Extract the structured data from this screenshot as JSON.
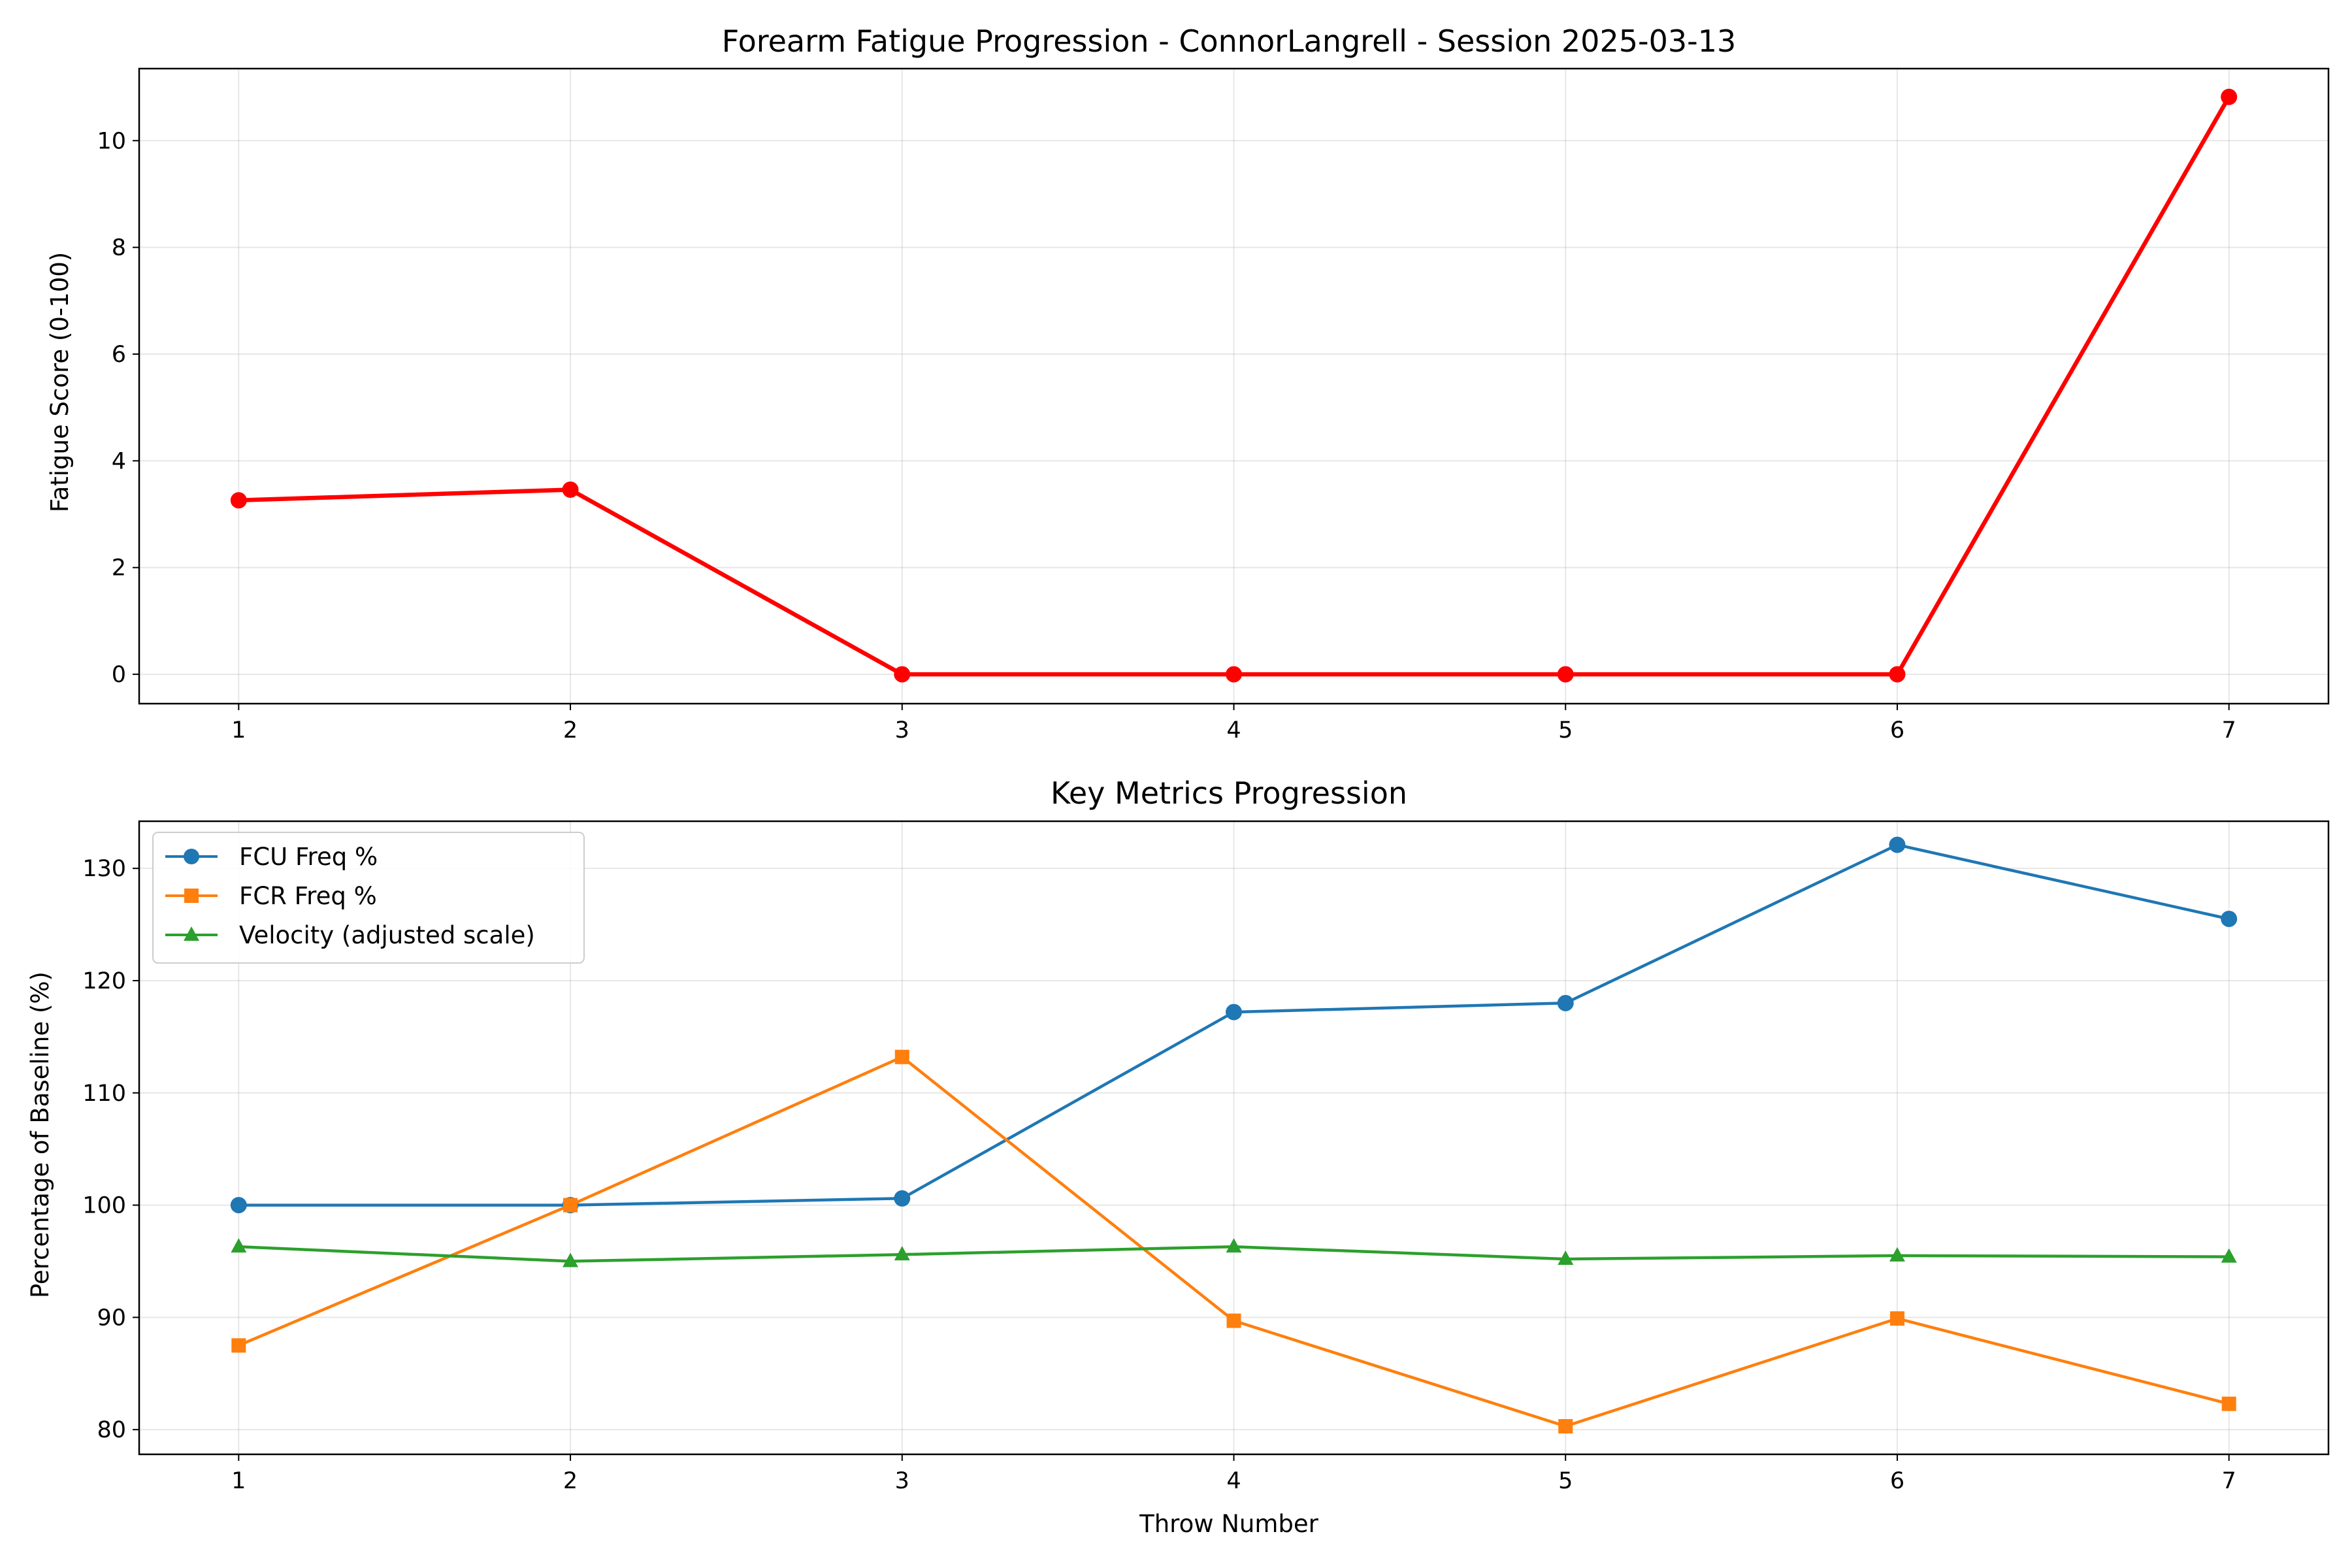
{
  "chart_data": [
    {
      "type": "line",
      "title": "Forearm Fatigue Progression - ConnorLangrell - Session 2025-03-13",
      "xlabel": "",
      "ylabel": "Fatigue Score (0-100)",
      "x": [
        1,
        2,
        3,
        4,
        5,
        6,
        7
      ],
      "xlim": [
        0.7,
        7.3
      ],
      "ylim": [
        -0.55,
        11.35
      ],
      "yticks": [
        0,
        2,
        4,
        6,
        8,
        10
      ],
      "grid": true,
      "series": [
        {
          "values": [
            3.26,
            3.46,
            0,
            0,
            0,
            0,
            10.82
          ],
          "color": "#ff0000",
          "marker": "circle"
        }
      ]
    },
    {
      "type": "line",
      "title": "Key Metrics Progression",
      "xlabel": "Throw Number",
      "ylabel": "Percentage of Baseline (%)",
      "x": [
        1,
        2,
        3,
        4,
        5,
        6,
        7
      ],
      "xlim": [
        0.7,
        7.3
      ],
      "ylim": [
        77.8,
        134.2
      ],
      "yticks": [
        80,
        90,
        100,
        110,
        120,
        130
      ],
      "grid": true,
      "legend_position": "upper-left",
      "series": [
        {
          "name": "FCU Freq %",
          "values": [
            100.0,
            100.0,
            100.6,
            117.2,
            118.0,
            132.1,
            125.5
          ],
          "color": "#1f77b4",
          "marker": "circle"
        },
        {
          "name": "FCR Freq %",
          "values": [
            87.5,
            100.0,
            113.2,
            89.7,
            80.3,
            89.9,
            82.3
          ],
          "color": "#ff7f0e",
          "marker": "square"
        },
        {
          "name": "Velocity (adjusted scale)",
          "values": [
            96.3,
            95.0,
            95.6,
            96.3,
            95.2,
            95.5,
            95.4
          ],
          "color": "#2ca02c",
          "marker": "triangle"
        }
      ]
    }
  ]
}
